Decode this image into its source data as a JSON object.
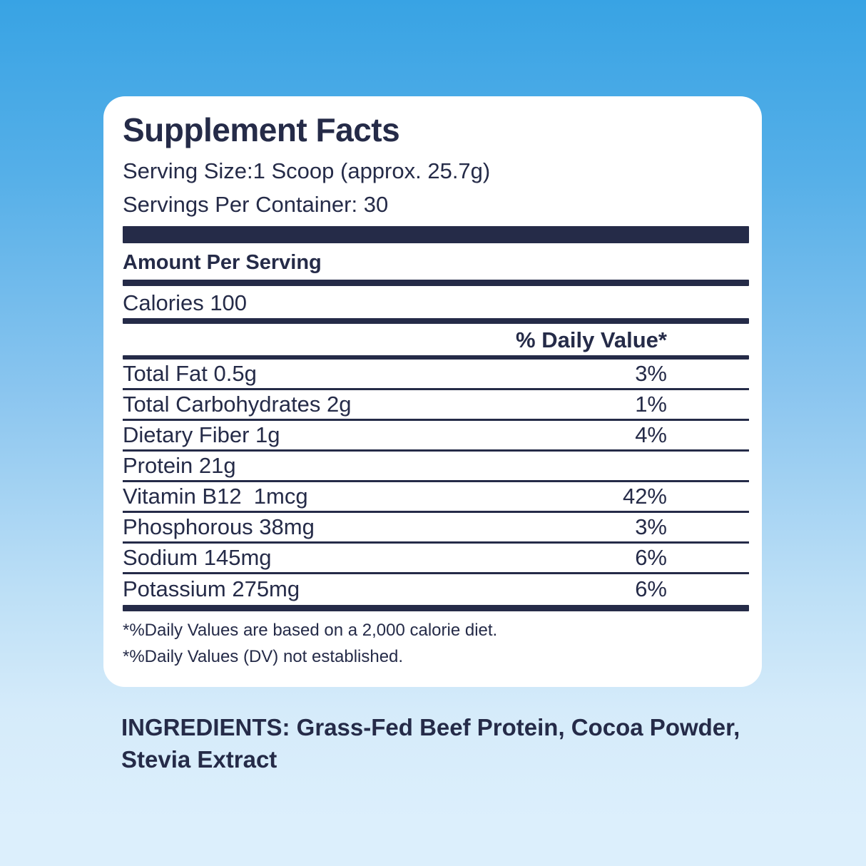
{
  "colors": {
    "navy": "#252b48",
    "card_background": "#ffffff",
    "background_top": "#38a3e4",
    "background_bottom": "#dceffc"
  },
  "panel": {
    "title": "Supplement Facts",
    "serving_size": "Serving Size:1 Scoop (approx. 25.7g)",
    "servings_per_container": "Servings Per Container: 30",
    "amount_per_serving": "Amount Per Serving",
    "calories": "Calories 100",
    "daily_value_header": "% Daily Value*",
    "rows": [
      {
        "label": "Total Fat 0.5g",
        "dv": "3%"
      },
      {
        "label": "Total Carbohydrates 2g",
        "dv": "1%"
      },
      {
        "label": "Dietary Fiber 1g",
        "dv": "4%"
      },
      {
        "label": "Protein 21g",
        "dv": ""
      },
      {
        "label": "Vitamin B12  1mcg",
        "dv": "42%"
      },
      {
        "label": "Phosphorous 38mg",
        "dv": "3%"
      },
      {
        "label": "Sodium 145mg",
        "dv": "6%"
      },
      {
        "label": "Potassium 275mg",
        "dv": "6%"
      }
    ],
    "footnotes": [
      "*%Daily Values are based on a 2,000 calorie diet.",
      "*%Daily Values (DV) not established."
    ]
  },
  "ingredients": {
    "text": "INGREDIENTS: Grass-Fed Beef Protein, Cocoa Powder, Stevia Extract"
  }
}
